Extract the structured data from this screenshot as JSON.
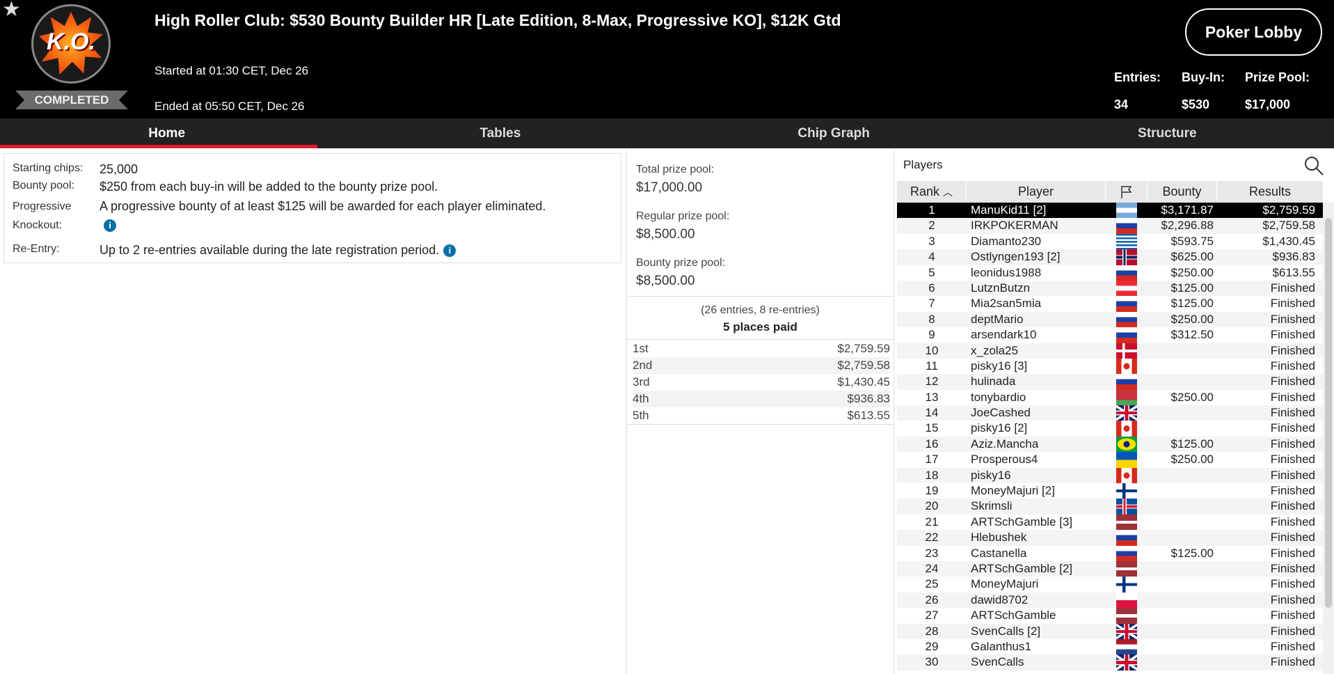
{
  "header": {
    "title": "High Roller Club: $530 Bounty Builder HR [Late Edition, 8-Max, Progressive KO], $12K Gtd",
    "started": "Started at 01:30 CET, Dec 26",
    "ended": "Ended at 05:50 CET, Dec 26",
    "status": "COMPLETED",
    "logo_text": "K.O.",
    "lobby_button": "Poker Lobby",
    "stats": [
      {
        "label": "Entries:",
        "value": "34"
      },
      {
        "label": "Buy-In:",
        "value": "$530"
      },
      {
        "label": "Prize Pool:",
        "value": "$17,000"
      }
    ]
  },
  "tabs": [
    {
      "label": "Home",
      "active": true
    },
    {
      "label": "Tables"
    },
    {
      "label": "Chip Graph"
    },
    {
      "label": "Structure"
    }
  ],
  "info": [
    {
      "key": "Starting chips:",
      "value": "25,000"
    },
    {
      "key": "Bounty pool:",
      "value": "$250 from each buy-in will be added to the bounty prize pool."
    },
    {
      "key": "Progressive Knockout:",
      "value": "A progressive bounty of at least $125 will be awarded for each player eliminated."
    },
    {
      "key": "Re-Entry:",
      "value": "Up to 2 re-entries available during the late registration period."
    }
  ],
  "prize": {
    "total_label": "Total prize pool:",
    "total": "$17,000.00",
    "regular_label": "Regular prize pool:",
    "regular": "$8,500.00",
    "bounty_label": "Bounty prize pool:",
    "bounty": "$8,500.00",
    "entries": "(26 entries, 8 re-entries)",
    "paid": "5 places paid",
    "payouts": [
      {
        "place": "1st",
        "amount": "$2,759.59"
      },
      {
        "place": "2nd",
        "amount": "$2,759.58"
      },
      {
        "place": "3rd",
        "amount": "$1,430.45"
      },
      {
        "place": "4th",
        "amount": "$936.83"
      },
      {
        "place": "5th",
        "amount": "$613.55"
      }
    ]
  },
  "players": {
    "label": "Players",
    "columns": {
      "rank": "Rank",
      "player": "Player",
      "bounty": "Bounty",
      "results": "Results"
    },
    "rows": [
      {
        "rank": "1",
        "name": "ManuKid11 [2]",
        "flag": "ar",
        "bounty": "$3,171.87",
        "result": "$2,759.59",
        "selected": true
      },
      {
        "rank": "2",
        "name": "IRKPOKERMAN",
        "flag": "ru",
        "bounty": "$2,296.88",
        "result": "$2,759.58"
      },
      {
        "rank": "3",
        "name": "Diamanto230",
        "flag": "gr",
        "bounty": "$593.75",
        "result": "$1,430.45"
      },
      {
        "rank": "4",
        "name": "Ostlyngen193 [2]",
        "flag": "no",
        "bounty": "$625.00",
        "result": "$936.83"
      },
      {
        "rank": "5",
        "name": "leonidus1988",
        "flag": "ru",
        "bounty": "$250.00",
        "result": "$613.55"
      },
      {
        "rank": "6",
        "name": "LutznButzn",
        "flag": "at",
        "bounty": "$125.00",
        "result": "Finished"
      },
      {
        "rank": "7",
        "name": "Mia2san5mia",
        "flag": "ru",
        "bounty": "$125.00",
        "result": "Finished"
      },
      {
        "rank": "8",
        "name": "deptMario",
        "flag": "ru",
        "bounty": "$250.00",
        "result": "Finished"
      },
      {
        "rank": "9",
        "name": "arsendark10",
        "flag": "ru",
        "bounty": "$312.50",
        "result": "Finished"
      },
      {
        "rank": "10",
        "name": "x_zola25",
        "flag": "dk",
        "bounty": "",
        "result": "Finished"
      },
      {
        "rank": "11",
        "name": "pisky16 [3]",
        "flag": "ca",
        "bounty": "",
        "result": "Finished"
      },
      {
        "rank": "12",
        "name": "hulinada",
        "flag": "ru",
        "bounty": "",
        "result": "Finished"
      },
      {
        "rank": "13",
        "name": "tonybardio",
        "flag": "by",
        "bounty": "$250.00",
        "result": "Finished"
      },
      {
        "rank": "14",
        "name": "JoeCashed",
        "flag": "gb",
        "bounty": "",
        "result": "Finished"
      },
      {
        "rank": "15",
        "name": "pisky16 [2]",
        "flag": "ca",
        "bounty": "",
        "result": "Finished"
      },
      {
        "rank": "16",
        "name": "Aziz.Mancha",
        "flag": "br",
        "bounty": "$125.00",
        "result": "Finished"
      },
      {
        "rank": "17",
        "name": "Prosperous4",
        "flag": "ua",
        "bounty": "$250.00",
        "result": "Finished"
      },
      {
        "rank": "18",
        "name": "pisky16",
        "flag": "ca",
        "bounty": "",
        "result": "Finished"
      },
      {
        "rank": "19",
        "name": "MoneyMajuri [2]",
        "flag": "fi",
        "bounty": "",
        "result": "Finished"
      },
      {
        "rank": "20",
        "name": "Skrimsli",
        "flag": "is",
        "bounty": "",
        "result": "Finished"
      },
      {
        "rank": "21",
        "name": "ARTSchGamble [3]",
        "flag": "lv",
        "bounty": "",
        "result": "Finished"
      },
      {
        "rank": "22",
        "name": "Hlebushek",
        "flag": "ru",
        "bounty": "",
        "result": "Finished"
      },
      {
        "rank": "23",
        "name": "Castanella",
        "flag": "ru",
        "bounty": "$125.00",
        "result": "Finished"
      },
      {
        "rank": "24",
        "name": "ARTSchGamble [2]",
        "flag": "lv",
        "bounty": "",
        "result": "Finished"
      },
      {
        "rank": "25",
        "name": "MoneyMajuri",
        "flag": "fi",
        "bounty": "",
        "result": "Finished"
      },
      {
        "rank": "26",
        "name": "dawid8702",
        "flag": "pl",
        "bounty": "",
        "result": "Finished"
      },
      {
        "rank": "27",
        "name": "ARTSchGamble",
        "flag": "lv",
        "bounty": "",
        "result": "Finished"
      },
      {
        "rank": "28",
        "name": "SvenCalls [2]",
        "flag": "gb",
        "bounty": "",
        "result": "Finished"
      },
      {
        "rank": "29",
        "name": "Galanthus1",
        "flag": "nl",
        "bounty": "",
        "result": "Finished"
      },
      {
        "rank": "30",
        "name": "SvenCalls",
        "flag": "gb",
        "bounty": "",
        "result": "Finished"
      }
    ]
  },
  "colors": {
    "accent": "#e01a2c",
    "info_icon": "#0a6fa8",
    "header_bg": "#000000"
  }
}
